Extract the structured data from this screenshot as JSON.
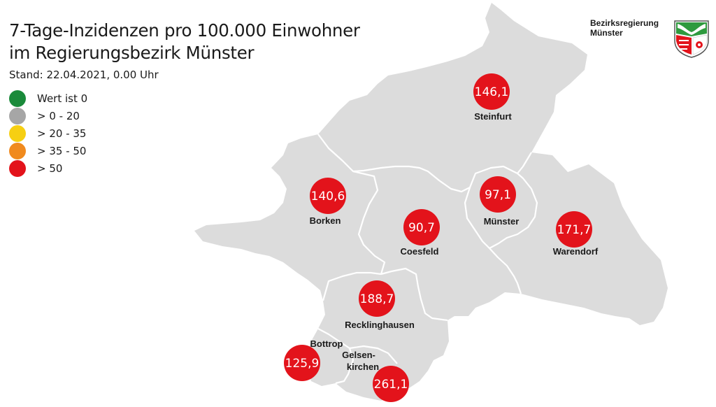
{
  "title": {
    "line1": "7-Tage-Inzidenzen pro 100.000 Einwohner",
    "line2": "im Regierungsbezirk Münster"
  },
  "stand": "Stand: 22.04.2021, 0.00 Uhr",
  "legend": [
    {
      "label": "Wert ist 0",
      "color": "#1a8a3a"
    },
    {
      "label": "> 0 - 20",
      "color": "#a6a6a6"
    },
    {
      "label": "> 20 - 35",
      "color": "#f6cf12"
    },
    {
      "label": "> 35 - 50",
      "color": "#f08a1e"
    },
    {
      "label": "> 50",
      "color": "#e3131b"
    }
  ],
  "brand": {
    "line1": "Bezirksregierung",
    "line2": "Münster"
  },
  "crest_icon": "nrw-coat-of-arms-icon",
  "map_fill": "#dcdcdc",
  "districts": [
    {
      "name": "Steinfurt",
      "value": "146,1",
      "color": "#e3131b"
    },
    {
      "name": "Borken",
      "value": "140,6",
      "color": "#e3131b"
    },
    {
      "name": "Coesfeld",
      "value": "90,7",
      "color": "#e3131b"
    },
    {
      "name": "Münster",
      "value": "97,1",
      "color": "#e3131b"
    },
    {
      "name": "Warendorf",
      "value": "171,7",
      "color": "#e3131b"
    },
    {
      "name": "Recklinghausen",
      "value": "188,7",
      "color": "#e3131b"
    },
    {
      "name": "Bottrop",
      "value": "125,9",
      "color": "#e3131b"
    },
    {
      "name": "Gelsenkirchen",
      "label_line1": "Gelsen-",
      "label_line2": "kirchen",
      "value": "261,1",
      "color": "#e3131b"
    }
  ]
}
